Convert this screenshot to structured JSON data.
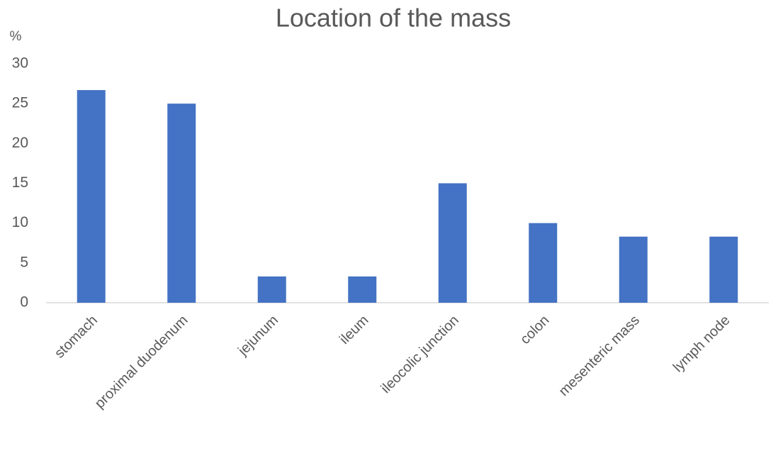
{
  "chart_data": {
    "type": "bar",
    "title": "Location of the mass",
    "y_label": "%",
    "categories": [
      "stomach",
      "proximal duodenum",
      "jejunum",
      "ileum",
      "ileocolic junction",
      "colon",
      "mesenteric mass",
      "lymph node"
    ],
    "values": [
      26.7,
      25,
      3.3,
      3.3,
      15,
      10,
      8.3,
      8.3
    ],
    "color": "#4472c4",
    "ylim": [
      0,
      30
    ],
    "yticks": [
      0,
      5,
      10,
      15,
      20,
      25,
      30
    ],
    "grid": false
  }
}
